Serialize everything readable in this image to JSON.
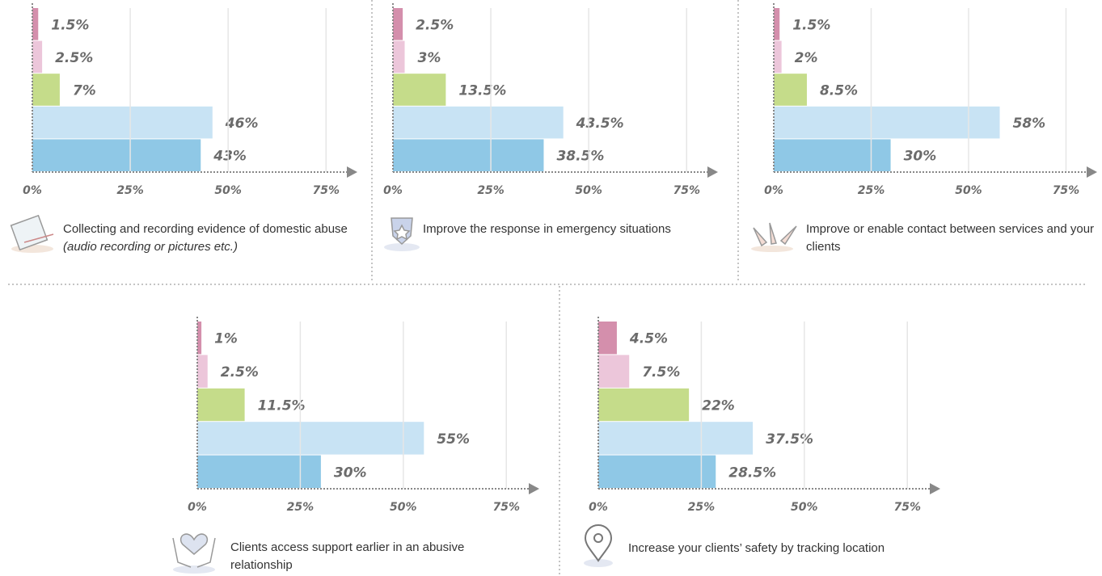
{
  "chart_data": [
    {
      "type": "bar",
      "orientation": "horizontal",
      "title": "Collecting and recording evidence of domestic abuse",
      "subtitle": "(audio recording or pictures etc.)",
      "categories": [
        null,
        null,
        null,
        null,
        null
      ],
      "values": [
        1.5,
        2.5,
        7,
        46,
        43
      ],
      "value_labels": [
        "1.5%",
        "2.5%",
        "7%",
        "46%",
        "43%"
      ],
      "colors": [
        "#d48fac",
        "#ecc6da",
        "#c5dc8a",
        "#c8e3f4",
        "#8fc8e6"
      ],
      "xlim": [
        0,
        83
      ],
      "xticks": [
        {
          "value": 0,
          "label": "0%"
        },
        {
          "value": 25,
          "label": "25%"
        },
        {
          "value": 50,
          "label": "50%"
        },
        {
          "value": 75,
          "label": "75%"
        }
      ],
      "grid": true
    },
    {
      "type": "bar",
      "orientation": "horizontal",
      "title": "Improve the response in emergency situations",
      "categories": [
        null,
        null,
        null,
        null,
        null
      ],
      "values": [
        2.5,
        3,
        13.5,
        43.5,
        38.5
      ],
      "value_labels": [
        "2.5%",
        "3%",
        "13.5%",
        "43.5%",
        "38.5%"
      ],
      "colors": [
        "#d48fac",
        "#ecc6da",
        "#c5dc8a",
        "#c8e3f4",
        "#8fc8e6"
      ],
      "xlim": [
        0,
        83
      ],
      "xticks": [
        {
          "value": 0,
          "label": "0%"
        },
        {
          "value": 25,
          "label": "25%"
        },
        {
          "value": 50,
          "label": "50%"
        },
        {
          "value": 75,
          "label": "75%"
        }
      ],
      "grid": true
    },
    {
      "type": "bar",
      "orientation": "horizontal",
      "title": "Improve or enable contact between services and your clients",
      "categories": [
        null,
        null,
        null,
        null,
        null
      ],
      "values": [
        1.5,
        2,
        8.5,
        58,
        30
      ],
      "value_labels": [
        "1.5%",
        "2%",
        "8.5%",
        "58%",
        "30%"
      ],
      "colors": [
        "#d48fac",
        "#ecc6da",
        "#c5dc8a",
        "#c8e3f4",
        "#8fc8e6"
      ],
      "xlim": [
        0,
        83
      ],
      "xticks": [
        {
          "value": 0,
          "label": "0%"
        },
        {
          "value": 25,
          "label": "25%"
        },
        {
          "value": 50,
          "label": "50%"
        },
        {
          "value": 75,
          "label": "75%"
        }
      ],
      "grid": true
    },
    {
      "type": "bar",
      "orientation": "horizontal",
      "title": "Clients access support earlier in an abusive relationship",
      "categories": [
        null,
        null,
        null,
        null,
        null
      ],
      "values": [
        1,
        2.5,
        11.5,
        55,
        30
      ],
      "value_labels": [
        "1%",
        "2.5%",
        "11.5%",
        "55%",
        "30%"
      ],
      "colors": [
        "#d48fac",
        "#ecc6da",
        "#c5dc8a",
        "#c8e3f4",
        "#8fc8e6"
      ],
      "xlim": [
        0,
        83
      ],
      "xticks": [
        {
          "value": 0,
          "label": "0%"
        },
        {
          "value": 25,
          "label": "25%"
        },
        {
          "value": 50,
          "label": "50%"
        },
        {
          "value": 75,
          "label": "75%"
        }
      ],
      "grid": true
    },
    {
      "type": "bar",
      "orientation": "horizontal",
      "title": "Increase your clients’ safety by tracking location",
      "categories": [
        null,
        null,
        null,
        null,
        null
      ],
      "values": [
        4.5,
        7.5,
        22,
        37.5,
        28.5
      ],
      "value_labels": [
        "4.5%",
        "7.5%",
        "22%",
        "37.5%",
        "28.5%"
      ],
      "colors": [
        "#d48fac",
        "#ecc6da",
        "#c5dc8a",
        "#c8e3f4",
        "#8fc8e6"
      ],
      "xlim": [
        0,
        83
      ],
      "xticks": [
        {
          "value": 0,
          "label": "0%"
        },
        {
          "value": 25,
          "label": "25%"
        },
        {
          "value": 50,
          "label": "50%"
        },
        {
          "value": 75,
          "label": "75%"
        }
      ],
      "grid": true
    }
  ]
}
